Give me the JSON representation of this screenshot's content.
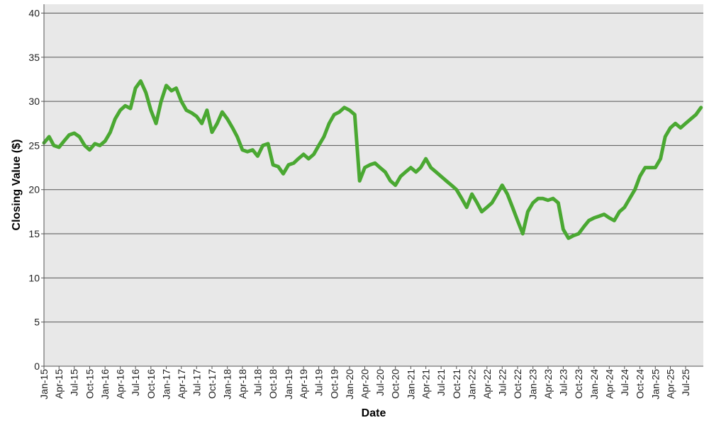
{
  "chart_data": {
    "type": "line",
    "title": "",
    "xlabel": "Date",
    "ylabel": "Closing Value ($)",
    "ylim": [
      0,
      41
    ],
    "yticks": [
      0,
      5,
      10,
      15,
      20,
      25,
      30,
      35,
      40
    ],
    "xlim": [
      "2015-01-01",
      "2025-10-15"
    ],
    "x_tick_labels": [
      "Jan-15",
      "Apr-15",
      "Jul-15",
      "Oct-15",
      "Jan-16",
      "Apr-16",
      "Jul-16",
      "Oct-16",
      "Jan-17",
      "Apr-17",
      "Jul-17",
      "Oct-17",
      "Jan-18",
      "Apr-18",
      "Jul-18",
      "Oct-18",
      "Jan-19",
      "Apr-19",
      "Jul-19",
      "Oct-19",
      "Jan-20",
      "Apr-20",
      "Jul-20",
      "Oct-20",
      "Jan-21",
      "Apr-21",
      "Jul-21",
      "Oct-21",
      "Jan-22",
      "Apr-22",
      "Jul-22",
      "Oct-22",
      "Jan-23",
      "Apr-23",
      "Jul-23",
      "Oct-23",
      "Jan-24",
      "Apr-24",
      "Jul-24",
      "Oct-24",
      "Jan-25",
      "Apr-25",
      "Jul-25"
    ],
    "grid": true,
    "legend": "none",
    "colors": {
      "line": "#4aa832",
      "plot_background": "#e8e8e8",
      "grid": "#555555"
    },
    "series": [
      {
        "x": [
          "2015-01-01",
          "2015-02-01",
          "2015-03-01",
          "2015-04-01",
          "2015-05-01",
          "2015-06-01",
          "2015-07-01",
          "2015-08-01",
          "2015-09-01",
          "2015-10-01",
          "2015-11-01",
          "2015-12-01",
          "2016-01-01",
          "2016-02-01",
          "2016-03-01",
          "2016-04-01",
          "2016-05-01",
          "2016-06-01",
          "2016-07-01",
          "2016-08-01",
          "2016-09-01",
          "2016-10-01",
          "2016-11-01",
          "2016-12-01",
          "2017-01-01",
          "2017-02-01",
          "2017-03-01",
          "2017-04-01",
          "2017-05-01",
          "2017-06-01",
          "2017-07-01",
          "2017-08-01",
          "2017-09-01",
          "2017-10-01",
          "2017-11-01",
          "2017-12-01",
          "2018-01-01",
          "2018-02-01",
          "2018-03-01",
          "2018-04-01",
          "2018-05-01",
          "2018-06-01",
          "2018-07-01",
          "2018-08-01",
          "2018-09-01",
          "2018-10-01",
          "2018-11-01",
          "2018-12-01",
          "2019-01-01",
          "2019-02-01",
          "2019-03-01",
          "2019-04-01",
          "2019-05-01",
          "2019-06-01",
          "2019-07-01",
          "2019-08-01",
          "2019-09-01",
          "2019-10-01",
          "2019-11-01",
          "2019-12-01",
          "2020-01-01",
          "2020-02-01",
          "2020-03-01",
          "2020-04-01",
          "2020-05-01",
          "2020-06-01",
          "2020-07-01",
          "2020-08-01",
          "2020-09-01",
          "2020-10-01",
          "2020-11-01",
          "2020-12-01",
          "2021-01-01",
          "2021-02-01",
          "2021-03-01",
          "2021-04-01",
          "2021-05-01",
          "2021-06-01",
          "2021-07-01",
          "2021-08-01",
          "2021-09-01",
          "2021-10-01",
          "2021-11-01",
          "2021-12-01",
          "2022-01-01",
          "2022-02-01",
          "2022-03-01",
          "2022-04-01",
          "2022-05-01",
          "2022-06-01",
          "2022-07-01",
          "2022-08-01",
          "2022-09-01",
          "2022-10-01",
          "2022-11-01",
          "2022-12-01",
          "2023-01-01",
          "2023-02-01",
          "2023-03-01",
          "2023-04-01",
          "2023-05-01",
          "2023-06-01",
          "2023-07-01",
          "2023-08-01",
          "2023-09-01",
          "2023-10-01",
          "2023-11-01",
          "2023-12-01",
          "2024-01-01",
          "2024-02-01",
          "2024-03-01",
          "2024-04-01",
          "2024-05-01",
          "2024-06-01",
          "2024-07-01",
          "2024-08-01",
          "2024-09-01",
          "2024-10-01",
          "2024-11-01",
          "2024-12-01",
          "2025-01-01",
          "2025-02-01",
          "2025-03-01",
          "2025-04-01",
          "2025-05-01",
          "2025-06-01",
          "2025-07-01",
          "2025-08-01",
          "2025-09-01",
          "2025-10-01"
        ],
        "values": [
          25.3,
          26.0,
          25.0,
          24.8,
          25.5,
          26.2,
          26.4,
          26.0,
          25.0,
          24.5,
          25.2,
          25.0,
          25.5,
          26.5,
          28.0,
          29.0,
          29.5,
          29.2,
          31.5,
          32.3,
          31.0,
          29.0,
          27.5,
          30.0,
          31.8,
          31.2,
          31.5,
          30.0,
          29.0,
          28.7,
          28.3,
          27.5,
          29.0,
          26.5,
          27.5,
          28.8,
          28.0,
          27.0,
          26.0,
          24.5,
          24.3,
          24.5,
          23.8,
          25.0,
          25.2,
          22.8,
          22.6,
          21.8,
          22.8,
          23.0,
          23.5,
          24.0,
          23.5,
          24.0,
          25.0,
          26.0,
          27.5,
          28.5,
          28.8,
          29.3,
          29.0,
          28.5,
          21.0,
          22.5,
          22.8,
          23.0,
          22.5,
          22.0,
          21.0,
          20.5,
          21.5,
          22.0,
          22.5,
          22.0,
          22.5,
          23.5,
          22.5,
          22.0,
          21.5,
          21.0,
          20.5,
          20.0,
          19.0,
          18.0,
          19.5,
          18.5,
          17.5,
          18.0,
          18.5,
          19.5,
          20.5,
          19.5,
          18.0,
          16.5,
          15.0,
          17.5,
          18.5,
          19.0,
          19.0,
          18.8,
          19.0,
          18.5,
          15.5,
          14.5,
          14.8,
          15.0,
          15.8,
          16.5,
          16.8,
          17.0,
          17.2,
          16.8,
          16.5,
          17.5,
          18.0,
          19.0,
          20.0,
          21.5,
          22.5,
          22.5,
          22.5,
          23.5,
          26.0,
          27.0,
          27.5,
          27.0,
          27.5,
          28.0,
          28.5,
          29.3
        ]
      }
    ]
  }
}
